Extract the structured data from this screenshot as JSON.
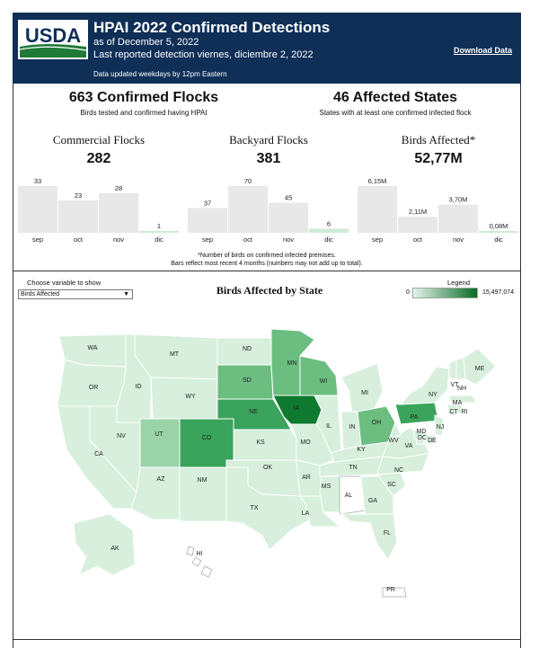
{
  "header": {
    "logo_text": "USDA",
    "title": "HPAI 2022 Confirmed Detections",
    "as_of": "as of December 5, 2022",
    "last_reported": "Last reported detection viernes, diciembre 2, 2022",
    "updated": "Data updated weekdays by 12pm Eastern",
    "download_label": "Download Data"
  },
  "summary": {
    "flocks": {
      "value": "663 Confirmed Flocks",
      "caption": "Birds tested and confirmed having HPAI"
    },
    "states": {
      "value": "46 Affected States",
      "caption": "States with at least one confirmed infected flock"
    }
  },
  "stats": [
    {
      "title": "Commercial Flocks",
      "value": "282"
    },
    {
      "title": "Backyard Flocks",
      "value": "381"
    },
    {
      "title": "Birds Affected*",
      "value": "52,77M"
    }
  ],
  "chart_data": [
    {
      "type": "bar",
      "categories": [
        "sep",
        "oct",
        "nov",
        "dic"
      ],
      "values": [
        33,
        23,
        28,
        1
      ],
      "labels": [
        "33",
        "23",
        "28",
        "1"
      ],
      "highlight_last": true
    },
    {
      "type": "bar",
      "categories": [
        "sep",
        "oct",
        "nov",
        "dic"
      ],
      "values": [
        37,
        70,
        45,
        6
      ],
      "labels": [
        "37",
        "70",
        "45",
        "6"
      ],
      "highlight_last": true
    },
    {
      "type": "bar",
      "categories": [
        "sep",
        "oct",
        "nov",
        "dic"
      ],
      "values": [
        6.15,
        2.11,
        3.7,
        0.08
      ],
      "labels": [
        "6,15M",
        "2,11M",
        "3,70M",
        "0,08M"
      ],
      "highlight_last": true
    }
  ],
  "notes": {
    "line1": "*Number of birds on confirmed infected premises.",
    "line2": "Bars reflect most recent 4 months (numbers may not add up to total)."
  },
  "control": {
    "label": "Choose variable to show",
    "selected": "Birds Affected"
  },
  "map": {
    "title": "Birds Affected by State",
    "legend_title": "Legend",
    "legend_min": "0",
    "legend_max": "15,497,074",
    "colors": {
      "light": "#d7efdc",
      "mid": "#9bd3a9",
      "mid2": "#6bbd80",
      "dark": "#3aa45c",
      "darkest": "#0e7a2f",
      "none": "#ffffff",
      "border": "#ffffff"
    }
  },
  "states": [
    {
      "abbr": "WA",
      "shade": "light"
    },
    {
      "abbr": "OR",
      "shade": "light"
    },
    {
      "abbr": "CA",
      "shade": "light"
    },
    {
      "abbr": "ID",
      "shade": "light"
    },
    {
      "abbr": "NV",
      "shade": "light"
    },
    {
      "abbr": "MT",
      "shade": "light"
    },
    {
      "abbr": "WY",
      "shade": "light"
    },
    {
      "abbr": "UT",
      "shade": "mid"
    },
    {
      "abbr": "AZ",
      "shade": "light"
    },
    {
      "abbr": "CO",
      "shade": "dark"
    },
    {
      "abbr": "NM",
      "shade": "light"
    },
    {
      "abbr": "ND",
      "shade": "light"
    },
    {
      "abbr": "SD",
      "shade": "mid2"
    },
    {
      "abbr": "NE",
      "shade": "dark"
    },
    {
      "abbr": "KS",
      "shade": "light"
    },
    {
      "abbr": "OK",
      "shade": "light"
    },
    {
      "abbr": "TX",
      "shade": "light"
    },
    {
      "abbr": "MN",
      "shade": "mid2"
    },
    {
      "abbr": "IA",
      "shade": "darkest"
    },
    {
      "abbr": "MO",
      "shade": "light"
    },
    {
      "abbr": "AR",
      "shade": "light"
    },
    {
      "abbr": "LA",
      "shade": "light"
    },
    {
      "abbr": "WI",
      "shade": "mid2"
    },
    {
      "abbr": "IL",
      "shade": "light"
    },
    {
      "abbr": "MI",
      "shade": "light"
    },
    {
      "abbr": "IN",
      "shade": "light"
    },
    {
      "abbr": "OH",
      "shade": "mid2"
    },
    {
      "abbr": "KY",
      "shade": "light"
    },
    {
      "abbr": "TN",
      "shade": "light"
    },
    {
      "abbr": "MS",
      "shade": "light"
    },
    {
      "abbr": "AL",
      "shade": "none"
    },
    {
      "abbr": "GA",
      "shade": "light"
    },
    {
      "abbr": "FL",
      "shade": "light"
    },
    {
      "abbr": "SC",
      "shade": "light"
    },
    {
      "abbr": "NC",
      "shade": "light"
    },
    {
      "abbr": "VA",
      "shade": "light"
    },
    {
      "abbr": "WV",
      "shade": "light"
    },
    {
      "abbr": "PA",
      "shade": "dark"
    },
    {
      "abbr": "NY",
      "shade": "light"
    },
    {
      "abbr": "VT",
      "shade": "light"
    },
    {
      "abbr": "NH",
      "shade": "light"
    },
    {
      "abbr": "ME",
      "shade": "light"
    },
    {
      "abbr": "MA",
      "shade": "light"
    },
    {
      "abbr": "CT",
      "shade": "light"
    },
    {
      "abbr": "RI",
      "shade": "light"
    },
    {
      "abbr": "NJ",
      "shade": "light"
    },
    {
      "abbr": "DE",
      "shade": "light"
    },
    {
      "abbr": "MD",
      "shade": "light"
    },
    {
      "abbr": "DC",
      "shade": "light"
    },
    {
      "abbr": "AK",
      "shade": "light"
    },
    {
      "abbr": "HI",
      "shade": "none"
    },
    {
      "abbr": "PR",
      "shade": "none"
    }
  ]
}
